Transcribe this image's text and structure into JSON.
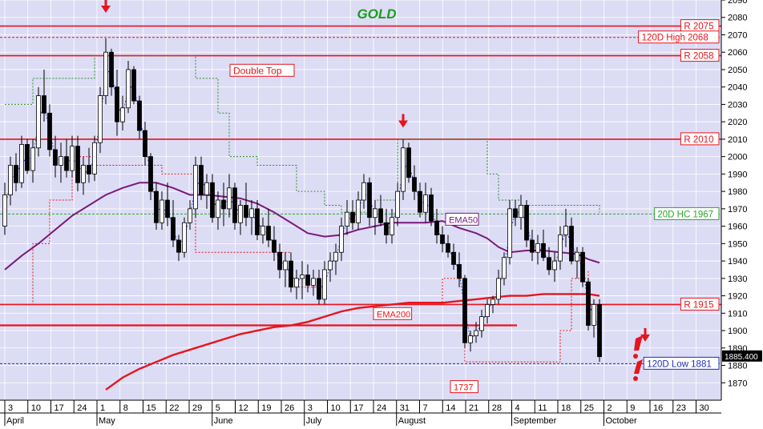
{
  "chart_data": {
    "type": "candlestick",
    "title": "GOLD",
    "ylim": [
      1860,
      2090
    ],
    "y_ticks": [
      1870,
      1880,
      1890,
      1900,
      1910,
      1920,
      1930,
      1940,
      1950,
      1960,
      1970,
      1980,
      1990,
      2000,
      2010,
      2020,
      2030,
      2040,
      2050,
      2060,
      2070,
      2080,
      2090
    ],
    "day_ticks": [
      "3",
      "10",
      "17",
      "24",
      "1",
      "8",
      "15",
      "22",
      "29",
      "5",
      "12",
      "19",
      "26",
      "3",
      "10",
      "17",
      "24",
      "31",
      "7",
      "14",
      "21",
      "28",
      "4",
      "11",
      "18",
      "25",
      "2",
      "9",
      "16",
      "23",
      "30"
    ],
    "month_labels": [
      "April",
      "May",
      "June",
      "July",
      "August",
      "September",
      "October"
    ],
    "last_price": "1885.400",
    "horizontal_levels": [
      {
        "label": "R 2075",
        "value": 2075,
        "color": "#e8141c",
        "style": "solid"
      },
      {
        "label": "120D High 2068",
        "value": 2068.5,
        "color": "#e8141c",
        "style": "dashed"
      },
      {
        "label": "R 2058",
        "value": 2058,
        "color": "#e8141c",
        "style": "solid"
      },
      {
        "label": "R 2010",
        "value": 2010,
        "color": "#e8141c",
        "style": "solid"
      },
      {
        "label": "20D HC 1967",
        "value": 1967,
        "color": "#2aa52a",
        "style": "dashed"
      },
      {
        "label": "R 1915",
        "value": 1915,
        "color": "#e8141c",
        "style": "solid"
      },
      {
        "label": "120D Low 1881",
        "value": 1881,
        "color": "#1f2fb5",
        "style": "dashed"
      }
    ],
    "support_line": {
      "value": 1903,
      "label": "",
      "color": "#e8141c"
    },
    "annotations": [
      {
        "text": "Double Top",
        "color": "#e8141c"
      },
      {
        "text": "EMA50",
        "color": "#7b1a7b"
      },
      {
        "text": "EMA200",
        "color": "#e8141c"
      },
      {
        "text": "1737",
        "color": "#e8141c"
      }
    ],
    "series": [
      {
        "name": "EMA50",
        "color": "#7b1a7b",
        "values": [
          [
            0,
            1935
          ],
          [
            3,
            1943
          ],
          [
            6,
            1950
          ],
          [
            9,
            1958
          ],
          [
            12,
            1966
          ],
          [
            15,
            1972
          ],
          [
            18,
            1978
          ],
          [
            21,
            1982
          ],
          [
            24,
            1985
          ],
          [
            27,
            1985
          ],
          [
            30,
            1982
          ],
          [
            33,
            1978
          ],
          [
            36,
            1978
          ],
          [
            39,
            1977
          ],
          [
            42,
            1976
          ],
          [
            45,
            1973
          ],
          [
            48,
            1968
          ],
          [
            51,
            1962
          ],
          [
            54,
            1956
          ],
          [
            57,
            1954
          ],
          [
            60,
            1955
          ],
          [
            63,
            1958
          ],
          [
            66,
            1960
          ],
          [
            69,
            1962
          ],
          [
            72,
            1962
          ],
          [
            75,
            1962
          ],
          [
            78,
            1963
          ],
          [
            81,
            1959
          ],
          [
            84,
            1956
          ],
          [
            86,
            1953
          ],
          [
            88,
            1948
          ],
          [
            90,
            1945
          ],
          [
            93,
            1946
          ],
          [
            96,
            1946
          ],
          [
            99,
            1945
          ],
          [
            102,
            1944
          ],
          [
            104,
            1941
          ],
          [
            106,
            1939
          ]
        ]
      },
      {
        "name": "EMA200",
        "color": "#e8141c",
        "values": [
          [
            18,
            1866
          ],
          [
            21,
            1873
          ],
          [
            24,
            1878
          ],
          [
            27,
            1882
          ],
          [
            30,
            1886
          ],
          [
            33,
            1889
          ],
          [
            36,
            1892
          ],
          [
            39,
            1895
          ],
          [
            42,
            1898
          ],
          [
            45,
            1900
          ],
          [
            48,
            1902
          ],
          [
            51,
            1903
          ],
          [
            54,
            1905
          ],
          [
            57,
            1908
          ],
          [
            60,
            1911
          ],
          [
            63,
            1913
          ],
          [
            66,
            1914
          ],
          [
            69,
            1915
          ],
          [
            72,
            1916
          ],
          [
            75,
            1916
          ],
          [
            78,
            1916
          ],
          [
            81,
            1917
          ],
          [
            84,
            1918
          ],
          [
            87,
            1919
          ],
          [
            90,
            1920
          ],
          [
            93,
            1920
          ],
          [
            96,
            1921
          ],
          [
            99,
            1921
          ],
          [
            102,
            1921
          ],
          [
            104,
            1921
          ],
          [
            106,
            1920
          ]
        ]
      }
    ],
    "candles": [
      [
        0,
        1960,
        1985,
        1955,
        1978
      ],
      [
        1,
        1978,
        2000,
        1972,
        1995
      ],
      [
        2,
        1995,
        2002,
        1980,
        1985
      ],
      [
        3,
        1985,
        2012,
        1982,
        2007
      ],
      [
        4,
        2007,
        2010,
        1990,
        1992
      ],
      [
        5,
        1992,
        2010,
        1985,
        2005
      ],
      [
        6,
        2005,
        2040,
        2000,
        2035
      ],
      [
        7,
        2035,
        2050,
        2020,
        2025
      ],
      [
        8,
        2025,
        2030,
        2000,
        2004
      ],
      [
        9,
        2004,
        2012,
        1988,
        1995
      ],
      [
        10,
        1995,
        2008,
        1985,
        2000
      ],
      [
        11,
        2000,
        2010,
        1988,
        1992
      ],
      [
        12,
        1992,
        2012,
        1988,
        2006
      ],
      [
        13,
        2006,
        2012,
        1980,
        1985
      ],
      [
        14,
        1985,
        2000,
        1978,
        1995
      ],
      [
        15,
        1995,
        2005,
        1985,
        1990
      ],
      [
        16,
        1990,
        2012,
        1986,
        2008
      ],
      [
        17,
        2008,
        2040,
        2002,
        2035
      ],
      [
        18,
        2035,
        2068,
        2030,
        2060
      ],
      [
        19,
        2060,
        2062,
        2035,
        2040
      ],
      [
        20,
        2040,
        2050,
        2012,
        2020
      ],
      [
        21,
        2020,
        2035,
        2015,
        2028
      ],
      [
        22,
        2028,
        2055,
        2025,
        2050
      ],
      [
        23,
        2050,
        2052,
        2030,
        2032
      ],
      [
        24,
        2032,
        2035,
        2010,
        2015
      ],
      [
        25,
        2015,
        2020,
        1995,
        2000
      ],
      [
        26,
        2000,
        2002,
        1975,
        1980
      ],
      [
        27,
        1980,
        1985,
        1958,
        1962
      ],
      [
        28,
        1962,
        1980,
        1958,
        1975
      ],
      [
        29,
        1975,
        1985,
        1960,
        1965
      ],
      [
        30,
        1965,
        1975,
        1948,
        1952
      ],
      [
        31,
        1952,
        1955,
        1940,
        1945
      ],
      [
        32,
        1945,
        1965,
        1942,
        1962
      ],
      [
        33,
        1962,
        1975,
        1958,
        1970
      ],
      [
        34,
        1970,
        2000,
        1965,
        1995
      ],
      [
        35,
        1995,
        2000,
        1975,
        1978
      ],
      [
        36,
        1978,
        1990,
        1970,
        1985
      ],
      [
        37,
        1985,
        1990,
        1962,
        1965
      ],
      [
        38,
        1965,
        1980,
        1958,
        1975
      ],
      [
        39,
        1975,
        1985,
        1960,
        1970
      ],
      [
        40,
        1970,
        1990,
        1965,
        1982
      ],
      [
        41,
        1982,
        1985,
        1958,
        1962
      ],
      [
        42,
        1962,
        1975,
        1955,
        1972
      ],
      [
        43,
        1972,
        1985,
        1960,
        1965
      ],
      [
        44,
        1965,
        1975,
        1955,
        1970
      ],
      [
        45,
        1970,
        1975,
        1952,
        1955
      ],
      [
        46,
        1955,
        1965,
        1950,
        1960
      ],
      [
        47,
        1960,
        1970,
        1948,
        1952
      ],
      [
        48,
        1952,
        1960,
        1940,
        1945
      ],
      [
        49,
        1945,
        1950,
        1930,
        1935
      ],
      [
        50,
        1935,
        1945,
        1925,
        1940
      ],
      [
        51,
        1940,
        1945,
        1922,
        1925
      ],
      [
        52,
        1925,
        1935,
        1918,
        1930
      ],
      [
        53,
        1930,
        1940,
        1918,
        1932
      ],
      [
        54,
        1932,
        1938,
        1922,
        1926
      ],
      [
        55,
        1926,
        1935,
        1920,
        1930
      ],
      [
        56,
        1930,
        1935,
        1915,
        1918
      ],
      [
        57,
        1918,
        1940,
        1915,
        1935
      ],
      [
        58,
        1935,
        1945,
        1928,
        1940
      ],
      [
        59,
        1940,
        1950,
        1932,
        1945
      ],
      [
        60,
        1945,
        1965,
        1940,
        1960
      ],
      [
        61,
        1960,
        1975,
        1955,
        1968
      ],
      [
        62,
        1968,
        1975,
        1958,
        1962
      ],
      [
        63,
        1962,
        1980,
        1958,
        1975
      ],
      [
        64,
        1975,
        1990,
        1970,
        1985
      ],
      [
        65,
        1985,
        1988,
        1960,
        1965
      ],
      [
        66,
        1965,
        1975,
        1955,
        1970
      ],
      [
        67,
        1970,
        1978,
        1960,
        1962
      ],
      [
        68,
        1962,
        1970,
        1950,
        1955
      ],
      [
        69,
        1955,
        1970,
        1950,
        1965
      ],
      [
        70,
        1965,
        1985,
        1960,
        1980
      ],
      [
        71,
        1980,
        2010,
        1975,
        2005
      ],
      [
        72,
        2005,
        2008,
        1985,
        1988
      ],
      [
        73,
        1988,
        1995,
        1975,
        1980
      ],
      [
        74,
        1980,
        1985,
        1965,
        1968
      ],
      [
        75,
        1968,
        1985,
        1962,
        1978
      ],
      [
        76,
        1978,
        1982,
        1960,
        1963
      ],
      [
        77,
        1963,
        1970,
        1950,
        1955
      ],
      [
        78,
        1955,
        1960,
        1945,
        1950
      ],
      [
        79,
        1950,
        1955,
        1942,
        1945
      ],
      [
        80,
        1945,
        1950,
        1935,
        1938
      ],
      [
        81,
        1938,
        1945,
        1925,
        1930
      ],
      [
        82,
        1930,
        1932,
        1890,
        1893
      ],
      [
        83,
        1893,
        1900,
        1888,
        1897
      ],
      [
        84,
        1897,
        1905,
        1893,
        1900
      ],
      [
        85,
        1900,
        1912,
        1896,
        1908
      ],
      [
        86,
        1908,
        1918,
        1904,
        1915
      ],
      [
        87,
        1915,
        1920,
        1910,
        1918
      ],
      [
        88,
        1918,
        1935,
        1915,
        1930
      ],
      [
        89,
        1930,
        1945,
        1926,
        1942
      ],
      [
        90,
        1942,
        1975,
        1938,
        1970
      ],
      [
        91,
        1970,
        1975,
        1960,
        1965
      ],
      [
        92,
        1965,
        1978,
        1958,
        1972
      ],
      [
        93,
        1972,
        1975,
        1948,
        1952
      ],
      [
        94,
        1952,
        1958,
        1940,
        1945
      ],
      [
        95,
        1945,
        1955,
        1938,
        1950
      ],
      [
        96,
        1950,
        1958,
        1940,
        1942
      ],
      [
        97,
        1942,
        1948,
        1932,
        1935
      ],
      [
        98,
        1935,
        1945,
        1928,
        1940
      ],
      [
        99,
        1940,
        1960,
        1935,
        1955
      ],
      [
        100,
        1955,
        1970,
        1948,
        1960
      ],
      [
        101,
        1960,
        1965,
        1938,
        1940
      ],
      [
        102,
        1940,
        1948,
        1930,
        1945
      ],
      [
        103,
        1945,
        1948,
        1925,
        1928
      ],
      [
        104,
        1928,
        1930,
        1900,
        1903
      ],
      [
        105,
        1903,
        1918,
        1896,
        1915
      ],
      [
        106,
        1915,
        1918,
        1882,
        1885
      ]
    ]
  }
}
